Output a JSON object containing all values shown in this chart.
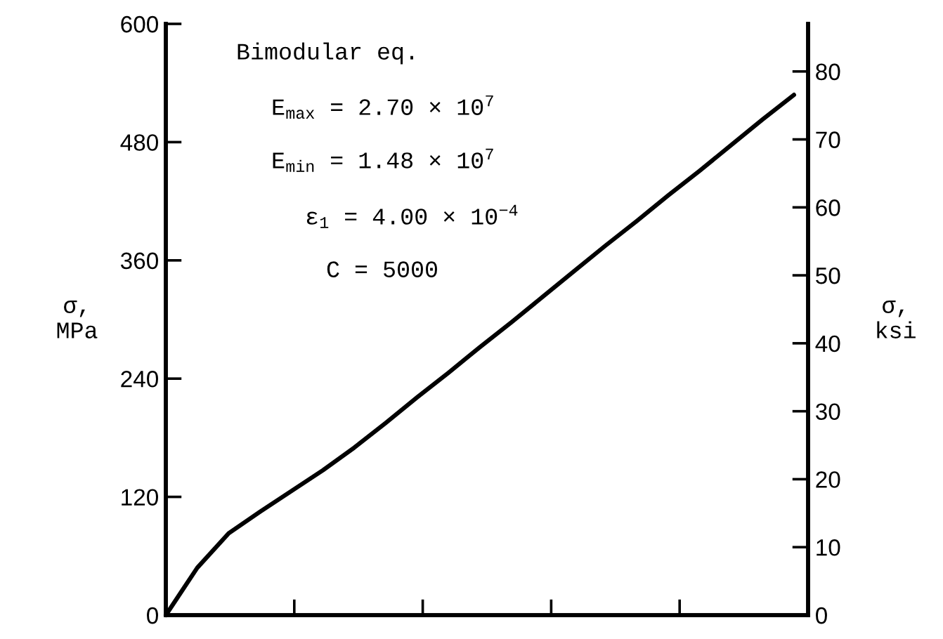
{
  "chart_data": {
    "type": "line",
    "ylabel": "σ,\nMPa",
    "y2label": "σ,\nksi",
    "annotations": [
      "Bimodular eq.",
      "E$_{max}$ = 2.70 × 10$^{7}$",
      "E$_{min}$ = 1.48 × 10$^{7}$",
      "ε$_{1}$ = 4.00 × 10$^{−4}$",
      "C = 5000"
    ],
    "categories": [
      null,
      null,
      null,
      null,
      null,
      null,
      null,
      null,
      null,
      null,
      null,
      null,
      null,
      null,
      null,
      null,
      null,
      null,
      null,
      null,
      null
    ],
    "series": [
      {
        "color": "#000000",
        "values": [
          0,
          48,
          83,
          105,
          126,
          147,
          170,
          195,
          221,
          246,
          272,
          297,
          323,
          349,
          375,
          400,
          426,
          451,
          477,
          503,
          528
        ]
      }
    ],
    "ylim": [
      0,
      600
    ],
    "yticks": [
      0,
      120,
      240,
      360,
      480,
      600
    ],
    "y2lim": [
      0,
      87.0
    ],
    "y2ticks": [
      0,
      10,
      20,
      30,
      40,
      50,
      60,
      70,
      80
    ],
    "grid": false,
    "legend": false,
    "marker": "none",
    "line_style": "solid"
  }
}
